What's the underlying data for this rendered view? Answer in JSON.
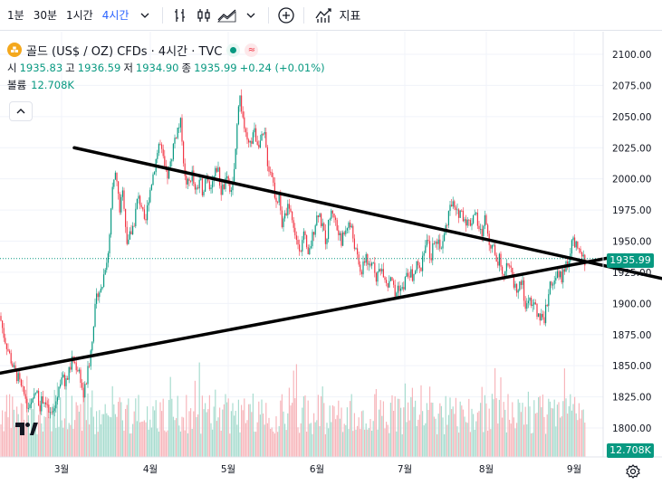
{
  "toolbar": {
    "timeframes": [
      "1분",
      "30분",
      "1시간",
      "4시간"
    ],
    "active_timeframe": "4시간",
    "indicators_label": "지표"
  },
  "legend": {
    "symbol": "골드 (US$ / OZ) CFDs · 4시간 · TVC",
    "open_label": "시",
    "open": "1935.83",
    "high_label": "고",
    "high": "1936.59",
    "low_label": "저",
    "low": "1934.90",
    "close_label": "종",
    "close": "1935.99",
    "change": "+0.24 (+0.01%)",
    "volume_label": "볼륨",
    "volume": "12.708K"
  },
  "colors": {
    "up": "#089981",
    "down": "#f23645",
    "accent": "#2962ff",
    "gold": "#f4a81d"
  },
  "price_badge": "1935.99",
  "volume_badge": "12.708K",
  "chart_data": {
    "type": "candlestick",
    "y_axis": [
      "2100.00",
      "2075.00",
      "2050.00",
      "2025.00",
      "2000.00",
      "1975.00",
      "1950.00",
      "1925.00",
      "1900.00",
      "1875.00",
      "1850.00",
      "1825.00",
      "1800.00"
    ],
    "ylim": [
      1790,
      2112
    ],
    "x_axis": [
      "3월",
      "4월",
      "5월",
      "6월",
      "7월",
      "8월",
      "9월"
    ],
    "price_path": [
      [
        0,
        1890
      ],
      [
        4,
        1875
      ],
      [
        8,
        1865
      ],
      [
        12,
        1855
      ],
      [
        16,
        1845
      ],
      [
        20,
        1840
      ],
      [
        24,
        1830
      ],
      [
        28,
        1825
      ],
      [
        32,
        1815
      ],
      [
        36,
        1820
      ],
      [
        40,
        1830
      ],
      [
        44,
        1818
      ],
      [
        48,
        1825
      ],
      [
        52,
        1815
      ],
      [
        56,
        1810
      ],
      [
        60,
        1815
      ],
      [
        64,
        1830
      ],
      [
        68,
        1842
      ],
      [
        72,
        1835
      ],
      [
        76,
        1845
      ],
      [
        80,
        1855
      ],
      [
        84,
        1850
      ],
      [
        88,
        1845
      ],
      [
        92,
        1825
      ],
      [
        96,
        1840
      ],
      [
        100,
        1860
      ],
      [
        104,
        1890
      ],
      [
        108,
        1910
      ],
      [
        112,
        1910
      ],
      [
        116,
        1930
      ],
      [
        120,
        1940
      ],
      [
        124,
        1990
      ],
      [
        128,
        2005
      ],
      [
        132,
        1975
      ],
      [
        136,
        1990
      ],
      [
        140,
        1950
      ],
      [
        144,
        1955
      ],
      [
        148,
        1965
      ],
      [
        152,
        1985
      ],
      [
        156,
        1980
      ],
      [
        160,
        1960
      ],
      [
        164,
        1985
      ],
      [
        168,
        2000
      ],
      [
        172,
        2015
      ],
      [
        176,
        2030
      ],
      [
        180,
        2015
      ],
      [
        184,
        2000
      ],
      [
        188,
        2010
      ],
      [
        192,
        2030
      ],
      [
        196,
        2040
      ],
      [
        200,
        2045
      ],
      [
        204,
        2000
      ],
      [
        208,
        1995
      ],
      [
        212,
        2005
      ],
      [
        216,
        1985
      ],
      [
        220,
        2000
      ],
      [
        224,
        1990
      ],
      [
        228,
        2005
      ],
      [
        232,
        1995
      ],
      [
        236,
        2000
      ],
      [
        240,
        2010
      ],
      [
        244,
        1990
      ],
      [
        248,
        1995
      ],
      [
        252,
        2000
      ],
      [
        256,
        1985
      ],
      [
        260,
        2020
      ],
      [
        264,
        2070
      ],
      [
        268,
        2050
      ],
      [
        272,
        2030
      ],
      [
        276,
        2025
      ],
      [
        280,
        2040
      ],
      [
        284,
        2030
      ],
      [
        288,
        2030
      ],
      [
        292,
        2035
      ],
      [
        296,
        2010
      ],
      [
        300,
        2005
      ],
      [
        304,
        1985
      ],
      [
        308,
        1985
      ],
      [
        312,
        1960
      ],
      [
        316,
        1975
      ],
      [
        320,
        1980
      ],
      [
        324,
        1960
      ],
      [
        328,
        1950
      ],
      [
        332,
        1945
      ],
      [
        336,
        1955
      ],
      [
        340,
        1935
      ],
      [
        344,
        1950
      ],
      [
        348,
        1965
      ],
      [
        352,
        1975
      ],
      [
        356,
        1960
      ],
      [
        360,
        1950
      ],
      [
        364,
        1970
      ],
      [
        368,
        1975
      ],
      [
        372,
        1960
      ],
      [
        376,
        1950
      ],
      [
        380,
        1955
      ],
      [
        384,
        1965
      ],
      [
        388,
        1960
      ],
      [
        392,
        1945
      ],
      [
        396,
        1930
      ],
      [
        400,
        1925
      ],
      [
        404,
        1940
      ],
      [
        408,
        1925
      ],
      [
        412,
        1935
      ],
      [
        416,
        1920
      ],
      [
        420,
        1930
      ],
      [
        424,
        1925
      ],
      [
        428,
        1915
      ],
      [
        432,
        1925
      ],
      [
        436,
        1905
      ],
      [
        440,
        1915
      ],
      [
        444,
        1910
      ],
      [
        448,
        1920
      ],
      [
        452,
        1925
      ],
      [
        456,
        1920
      ],
      [
        460,
        1930
      ],
      [
        464,
        1925
      ],
      [
        468,
        1945
      ],
      [
        472,
        1950
      ],
      [
        476,
        1935
      ],
      [
        480,
        1955
      ],
      [
        484,
        1950
      ],
      [
        488,
        1945
      ],
      [
        492,
        1960
      ],
      [
        496,
        1975
      ],
      [
        500,
        1980
      ],
      [
        504,
        1970
      ],
      [
        508,
        1975
      ],
      [
        512,
        1970
      ],
      [
        516,
        1965
      ],
      [
        520,
        1965
      ],
      [
        524,
        1975
      ],
      [
        528,
        1960
      ],
      [
        532,
        1955
      ],
      [
        536,
        1970
      ],
      [
        540,
        1950
      ],
      [
        544,
        1945
      ],
      [
        548,
        1935
      ],
      [
        552,
        1935
      ],
      [
        556,
        1925
      ],
      [
        560,
        1935
      ],
      [
        564,
        1925
      ],
      [
        568,
        1915
      ],
      [
        572,
        1910
      ],
      [
        576,
        1920
      ],
      [
        580,
        1895
      ],
      [
        584,
        1905
      ],
      [
        588,
        1900
      ],
      [
        592,
        1895
      ],
      [
        596,
        1890
      ],
      [
        600,
        1885
      ],
      [
        604,
        1900
      ],
      [
        608,
        1920
      ],
      [
        612,
        1915
      ],
      [
        616,
        1925
      ],
      [
        620,
        1920
      ],
      [
        624,
        1930
      ],
      [
        628,
        1935
      ],
      [
        632,
        1950
      ],
      [
        636,
        1945
      ],
      [
        640,
        1940
      ],
      [
        644,
        1935
      ]
    ],
    "last_price": 1935.99,
    "trendlines": [
      {
        "name": "upper",
        "from": [
          82,
          2025
        ],
        "to": [
          731,
          1920
        ]
      },
      {
        "name": "lower",
        "from": [
          0,
          1844
        ],
        "to": [
          690,
          1939
        ]
      }
    ]
  }
}
